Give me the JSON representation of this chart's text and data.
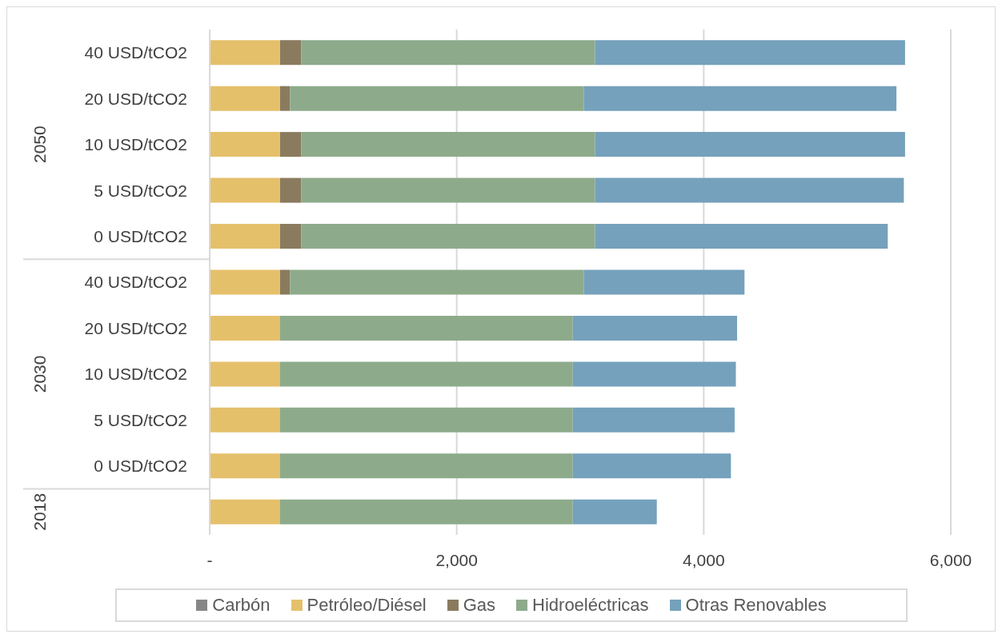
{
  "chart_data": {
    "type": "bar",
    "orientation": "horizontal",
    "stacked": true,
    "categories": [
      "40 USD/tCO2",
      "20 USD/tCO2",
      "10 USD/tCO2",
      "5 USD/tCO2",
      "0 USD/tCO2",
      "40 USD/tCO2",
      "20 USD/tCO2",
      "10 USD/tCO2",
      "5 USD/tCO2",
      "0 USD/tCO2",
      null
    ],
    "series": [
      {
        "name": "Carbón",
        "color": "#878787",
        "values": [
          0,
          0,
          0,
          0,
          0,
          0,
          0,
          0,
          0,
          0,
          0
        ]
      },
      {
        "name": "Petróleo/Diésel",
        "color": "#e5c06b",
        "values": [
          570,
          570,
          570,
          570,
          570,
          570,
          570,
          570,
          570,
          570,
          570
        ]
      },
      {
        "name": "Gas",
        "color": "#8a7b5f",
        "values": [
          170,
          80,
          170,
          170,
          170,
          80,
          0,
          0,
          0,
          0,
          0
        ]
      },
      {
        "name": "Hidroeléctricas",
        "color": "#8dab8b",
        "values": [
          2380,
          2380,
          2380,
          2380,
          2380,
          2380,
          2370,
          2370,
          2370,
          2370,
          2370
        ]
      },
      {
        "name": "Otras Renovables",
        "color": "#75a1bc",
        "values": [
          2510,
          2530,
          2510,
          2500,
          2370,
          1300,
          1330,
          1320,
          1310,
          1280,
          680
        ]
      }
    ],
    "xlim": [
      0,
      6000
    ],
    "xticks": [
      {
        "value": 0,
        "label": "-"
      },
      {
        "value": 2000,
        "label": "2,000"
      },
      {
        "value": 4000,
        "label": "4,000"
      },
      {
        "value": 6000,
        "label": "6,000"
      }
    ],
    "grid": "x",
    "legend": "bottom",
    "annotations": [
      "2050",
      "2030",
      "2018"
    ]
  }
}
